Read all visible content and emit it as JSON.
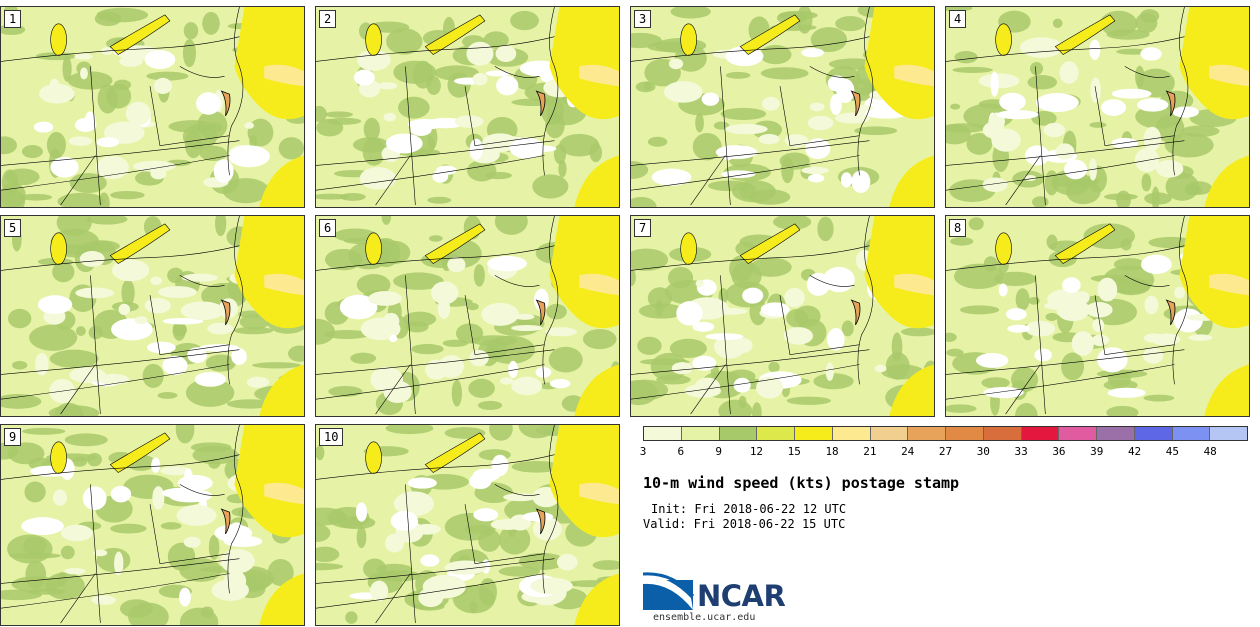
{
  "panels": [
    {
      "label": "1"
    },
    {
      "label": "2"
    },
    {
      "label": "3"
    },
    {
      "label": "4"
    },
    {
      "label": "5"
    },
    {
      "label": "6"
    },
    {
      "label": "7"
    },
    {
      "label": "8"
    },
    {
      "label": "9"
    },
    {
      "label": "10"
    }
  ],
  "colorbar": {
    "ticks": [
      "3",
      "6",
      "9",
      "12",
      "15",
      "18",
      "21",
      "24",
      "27",
      "30",
      "33",
      "36",
      "39",
      "42",
      "45",
      "48"
    ],
    "colors": [
      "#f4f9d9",
      "#e4f3a6",
      "#a8c96a",
      "#dde94a",
      "#f6ec1c",
      "#fde98f",
      "#f1cf8e",
      "#e8a35b",
      "#e18a46",
      "#d76e3b",
      "#e4183e",
      "#e05ba0",
      "#9b6fa8",
      "#5e68e6",
      "#7d91f2",
      "#b6c6f4"
    ]
  },
  "title": "10-m wind speed (kts) postage stamp",
  "init": "Init: Fri 2018-06-22 12 UTC",
  "valid": "Valid: Fri 2018-06-22 15 UTC",
  "logo_text": "NCAR",
  "url": "ensemble.ucar.edu",
  "icons": {
    "logo": "ncar-logo-icon"
  }
}
